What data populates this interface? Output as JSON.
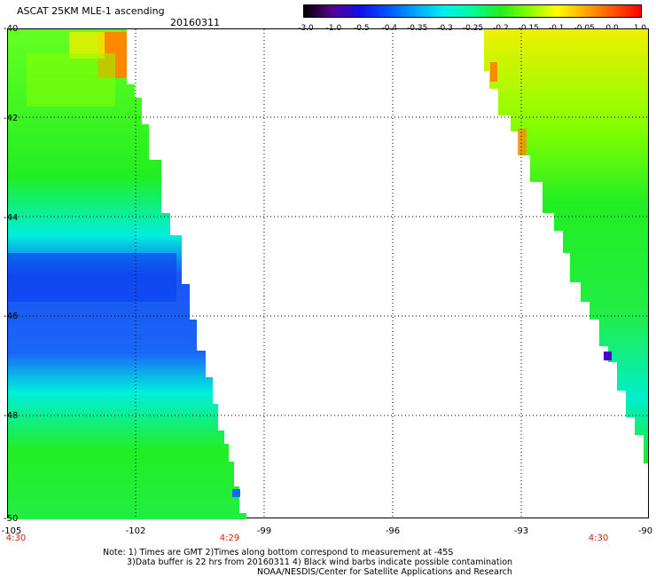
{
  "header": {
    "title": "ASCAT 25KM MLE-1 ascending",
    "date": "20160311"
  },
  "colorbar": {
    "labels": [
      "-3.0",
      "-1.0",
      "-0.5",
      "-0.4",
      "-0.35",
      "-0.3",
      "-0.25",
      "-0.2",
      "-0.15",
      "-0.1",
      "-0.05",
      "0.0",
      "1.0"
    ],
    "colors": [
      "#000000",
      "#5a0090",
      "#1010e8",
      "#0055ff",
      "#00a8ff",
      "#00eeee",
      "#00ff99",
      "#22ee22",
      "#88ff00",
      "#ffff00",
      "#ffaa00",
      "#ff5500",
      "#ff0000"
    ]
  },
  "map": {
    "lat_labels": [
      "-40",
      "-42",
      "-44",
      "-46",
      "-48",
      "-50"
    ],
    "lon_labels": [
      "-105",
      "-102",
      "-99",
      "-96",
      "-93",
      "-90"
    ],
    "time_labels": [
      "4:30",
      "4:29",
      "4:30"
    ],
    "swath_colors": {
      "green": "#22ee22",
      "cyan": "#00eedd",
      "blue": "#1a55f0",
      "yellow": "#e8f000",
      "orange": "#ff8800",
      "lime": "#88ff00",
      "purple": "#4b00c8"
    }
  },
  "footer": {
    "note1": "Note: 1) Times are GMT 2)Times along bottom correspond to measurement at -45S",
    "note2": "3)Data buffer is 22 hrs from 20160311 4) Black wind barbs indicate possible contamination",
    "note3": "NOAA/NESDIS/Center for Satellite Applications and Research"
  }
}
